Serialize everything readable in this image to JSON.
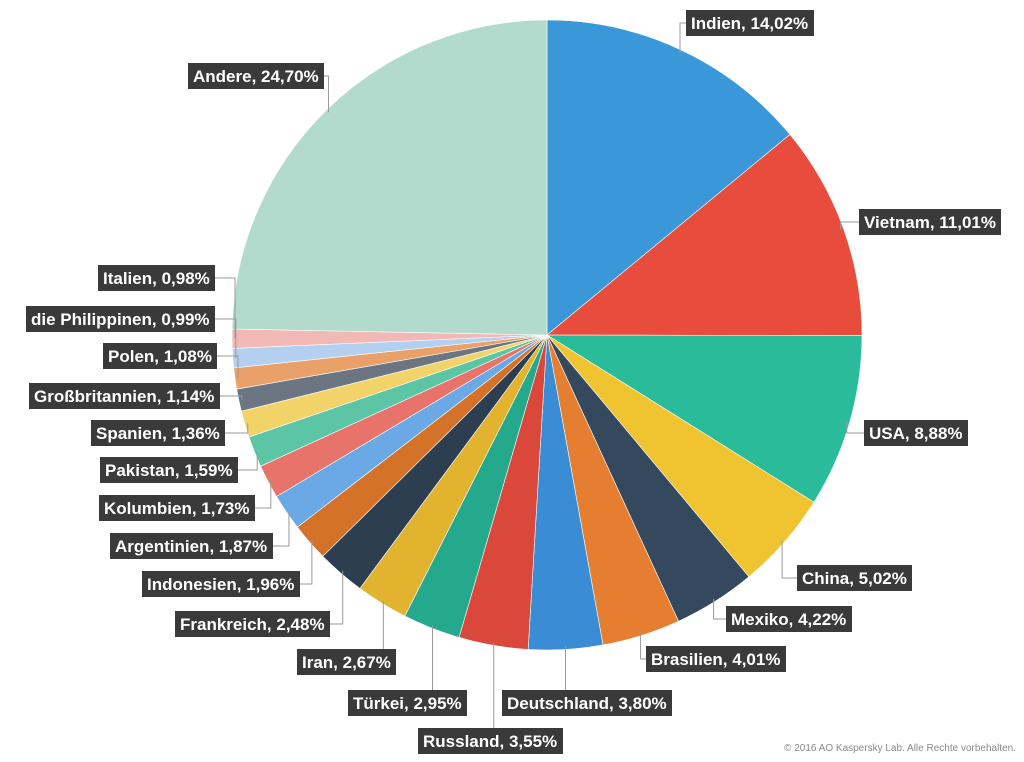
{
  "chart_data": {
    "type": "pie",
    "slices": [
      {
        "label": "Indien, 14,02%",
        "value": 14.02,
        "color": "#3a98d9"
      },
      {
        "label": "Vietnam, 11,01%",
        "value": 11.01,
        "color": "#e84c3d"
      },
      {
        "label": "USA, 8,88%",
        "value": 8.88,
        "color": "#2abb9a"
      },
      {
        "label": "China, 5,02%",
        "value": 5.02,
        "color": "#f0c330"
      },
      {
        "label": "Mexiko, 4,22%",
        "value": 4.22,
        "color": "#34495e"
      },
      {
        "label": "Brasilien, 4,01%",
        "value": 4.01,
        "color": "#e57e30"
      },
      {
        "label": "Deutschland, 3,80%",
        "value": 3.8,
        "color": "#3a8dd4"
      },
      {
        "label": "Russland, 3,55%",
        "value": 3.55,
        "color": "#d9483b"
      },
      {
        "label": "Türkei, 2,95%",
        "value": 2.95,
        "color": "#25a98c"
      },
      {
        "label": "Iran, 2,67%",
        "value": 2.67,
        "color": "#e1b32e"
      },
      {
        "label": "Frankreich, 2,48%",
        "value": 2.48,
        "color": "#2c3e50"
      },
      {
        "label": "Indonesien, 1,96%",
        "value": 1.96,
        "color": "#d5722a"
      },
      {
        "label": "Argentinien, 1,87%",
        "value": 1.87,
        "color": "#6aa9e6"
      },
      {
        "label": "Kolumbien, 1,73%",
        "value": 1.73,
        "color": "#e8736b"
      },
      {
        "label": "Pakistan, 1,59%",
        "value": 1.59,
        "color": "#5cc5a6"
      },
      {
        "label": "Spanien, 1,36%",
        "value": 1.36,
        "color": "#f2d36a"
      },
      {
        "label": "Großbritannien, 1,14%",
        "value": 1.14,
        "color": "#6b7682"
      },
      {
        "label": "Polen, 1,08%",
        "value": 1.08,
        "color": "#eaa069"
      },
      {
        "label": "die Philippinen, 0,99%",
        "value": 0.99,
        "color": "#b3d0f0"
      },
      {
        "label": "Italien, 0,98%",
        "value": 0.98,
        "color": "#f2b8b6"
      },
      {
        "label": "Andere, 24,70%",
        "value": 24.7,
        "color": "#b2dbcd"
      }
    ]
  },
  "footer": {
    "copyright": "© 2016 AO Kaspersky Lab. Alle Rechte vorbehalten."
  }
}
